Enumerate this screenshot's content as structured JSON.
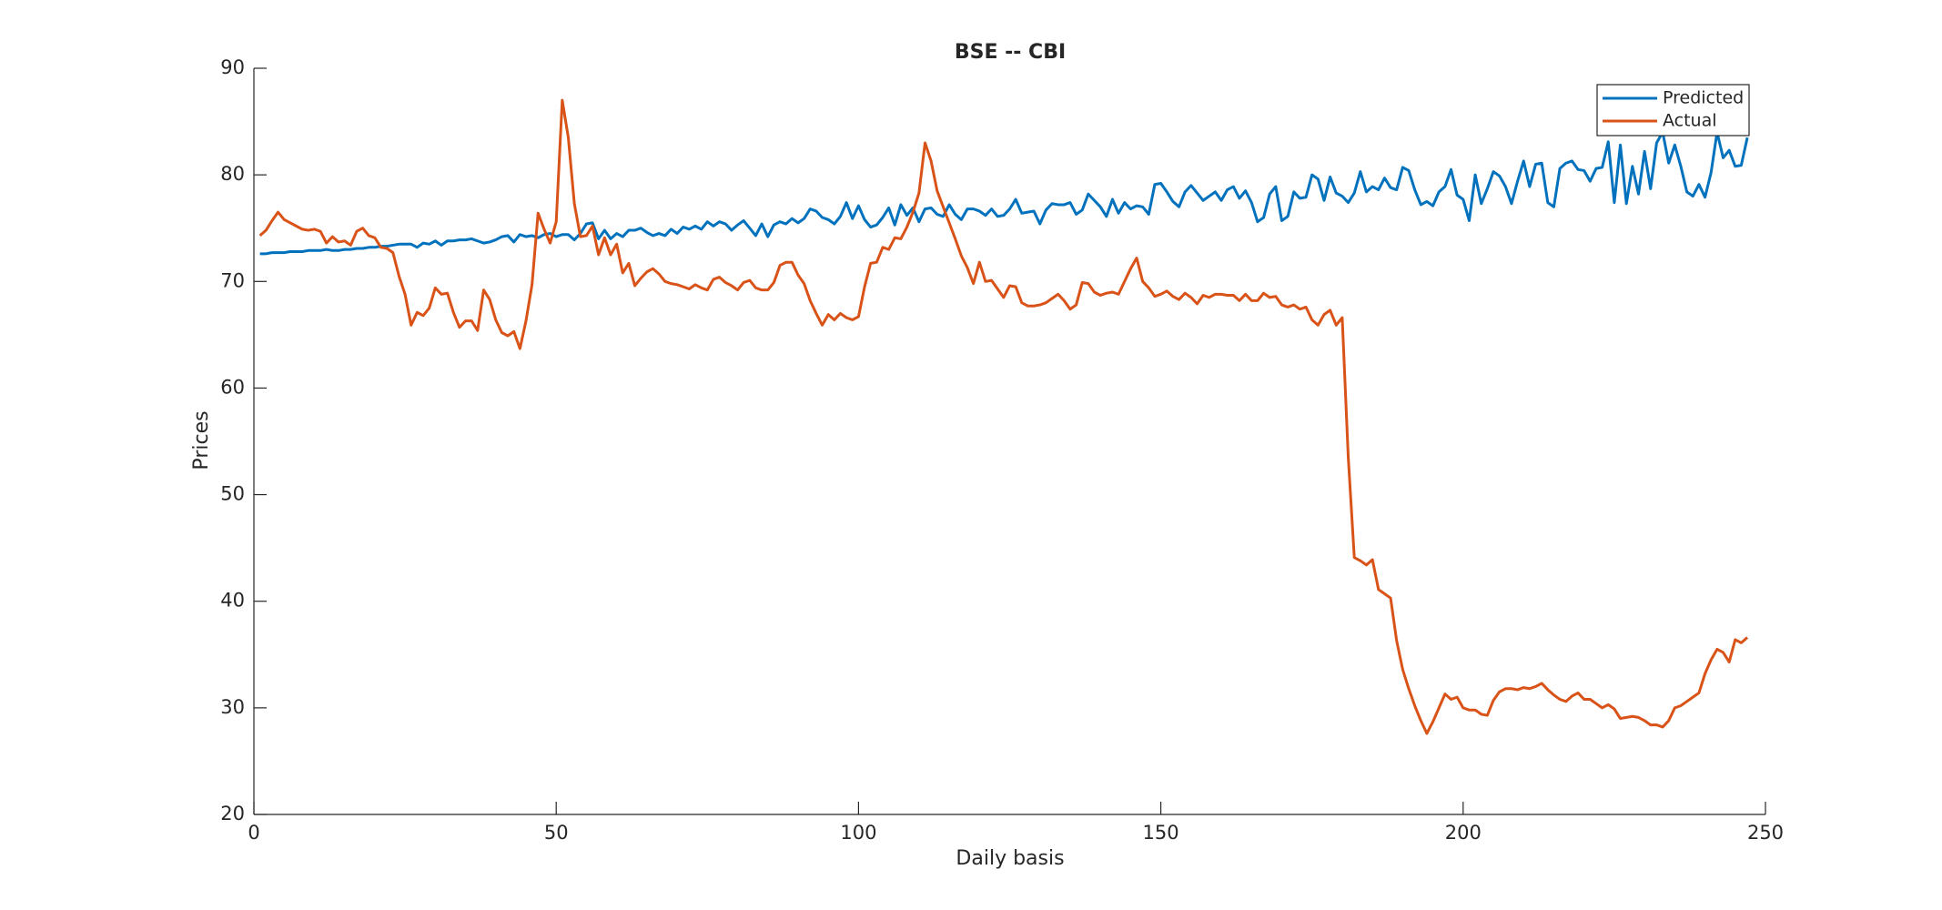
{
  "chart_data": {
    "type": "line",
    "title": "BSE -- CBI",
    "x_label": "Daily basis",
    "y_label": "Prices",
    "x": [
      1,
      2,
      3,
      4,
      5,
      6,
      7,
      8,
      9,
      10,
      11,
      12,
      13,
      14,
      15,
      16,
      17,
      18,
      19,
      20,
      21,
      22,
      23,
      24,
      25,
      26,
      27,
      28,
      29,
      30,
      31,
      32,
      33,
      34,
      35,
      36,
      37,
      38,
      39,
      40,
      41,
      42,
      43,
      44,
      45,
      46,
      47,
      48,
      49,
      50,
      51,
      52,
      53,
      54,
      55,
      56,
      57,
      58,
      59,
      60,
      61,
      62,
      63,
      64,
      65,
      66,
      67,
      68,
      69,
      70,
      71,
      72,
      73,
      74,
      75,
      76,
      77,
      78,
      79,
      80,
      81,
      82,
      83,
      84,
      85,
      86,
      87,
      88,
      89,
      90,
      91,
      92,
      93,
      94,
      95,
      96,
      97,
      98,
      99,
      100,
      101,
      102,
      103,
      104,
      105,
      106,
      107,
      108,
      109,
      110,
      111,
      112,
      113,
      114,
      115,
      116,
      117,
      118,
      119,
      120,
      121,
      122,
      123,
      124,
      125,
      126,
      127,
      128,
      129,
      130,
      131,
      132,
      133,
      134,
      135,
      136,
      137,
      138,
      139,
      140,
      141,
      142,
      143,
      144,
      145,
      146,
      147,
      148,
      149,
      150,
      151,
      152,
      153,
      154,
      155,
      156,
      157,
      158,
      159,
      160,
      161,
      162,
      163,
      164,
      165,
      166,
      167,
      168,
      169,
      170,
      171,
      172,
      173,
      174,
      175,
      176,
      177,
      178,
      179,
      180,
      181,
      182,
      183,
      184,
      185,
      186,
      187,
      188,
      189,
      190,
      191,
      192,
      193,
      194,
      195,
      196,
      197,
      198,
      199,
      200,
      201,
      202,
      203,
      204,
      205,
      206,
      207,
      208,
      209,
      210,
      211,
      212,
      213,
      214,
      215,
      216,
      217,
      218,
      219,
      220,
      221,
      222,
      223,
      224,
      225,
      226,
      227,
      228,
      229,
      230,
      231,
      232,
      233,
      234,
      235,
      236,
      237,
      238,
      239,
      240,
      241,
      242,
      243,
      244,
      245,
      246,
      247
    ],
    "series": [
      {
        "name": "Predicted",
        "color": "#0072bd",
        "values": [
          72.6,
          72.6,
          72.7,
          72.7,
          72.7,
          72.8,
          72.8,
          72.8,
          72.9,
          72.9,
          72.9,
          73.0,
          72.9,
          72.9,
          73.0,
          73.0,
          73.1,
          73.1,
          73.2,
          73.2,
          73.3,
          73.3,
          73.4,
          73.5,
          73.5,
          73.5,
          73.2,
          73.6,
          73.5,
          73.8,
          73.4,
          73.8,
          73.8,
          73.9,
          73.9,
          74.0,
          73.8,
          73.6,
          73.7,
          73.9,
          74.2,
          74.3,
          73.7,
          74.4,
          74.2,
          74.3,
          74.1,
          74.4,
          74.5,
          74.2,
          74.4,
          74.4,
          73.9,
          74.5,
          75.4,
          75.5,
          74.0,
          74.8,
          74.0,
          74.5,
          74.2,
          74.8,
          74.8,
          75.0,
          74.6,
          74.3,
          74.5,
          74.3,
          74.9,
          74.5,
          75.1,
          74.9,
          75.2,
          74.9,
          75.6,
          75.2,
          75.6,
          75.4,
          74.8,
          75.3,
          75.7,
          75.0,
          74.3,
          75.4,
          74.2,
          75.3,
          75.6,
          75.4,
          75.9,
          75.5,
          75.9,
          76.8,
          76.6,
          76.0,
          75.8,
          75.4,
          76.1,
          77.4,
          75.9,
          77.1,
          75.8,
          75.1,
          75.3,
          76.0,
          76.9,
          75.3,
          77.2,
          76.2,
          76.9,
          75.6,
          76.8,
          76.9,
          76.3,
          76.1,
          77.2,
          76.3,
          75.8,
          76.8,
          76.8,
          76.6,
          76.2,
          76.8,
          76.1,
          76.2,
          76.8,
          77.7,
          76.4,
          76.5,
          76.6,
          75.4,
          76.7,
          77.3,
          77.2,
          77.2,
          77.4,
          76.3,
          76.7,
          78.2,
          77.6,
          77.0,
          76.1,
          77.7,
          76.4,
          77.4,
          76.8,
          77.1,
          77.0,
          76.3,
          79.1,
          79.2,
          78.4,
          77.5,
          77.0,
          78.4,
          79.0,
          78.3,
          77.6,
          78.0,
          78.4,
          77.6,
          78.6,
          78.9,
          77.8,
          78.5,
          77.4,
          75.6,
          76.0,
          78.2,
          78.9,
          75.7,
          76.1,
          78.4,
          77.8,
          77.9,
          80.0,
          79.6,
          77.6,
          79.8,
          78.3,
          78.0,
          77.4,
          78.3,
          80.3,
          78.4,
          78.9,
          78.6,
          79.7,
          78.8,
          78.6,
          80.7,
          80.4,
          78.6,
          77.2,
          77.5,
          77.1,
          78.4,
          78.9,
          80.5,
          78.1,
          77.7,
          75.7,
          80.0,
          77.3,
          78.7,
          80.3,
          79.9,
          78.9,
          77.3,
          79.4,
          81.3,
          78.9,
          81.0,
          81.1,
          77.4,
          77.0,
          80.6,
          81.1,
          81.3,
          80.5,
          80.4,
          79.4,
          80.6,
          80.7,
          83.1,
          77.4,
          82.8,
          77.3,
          80.8,
          78.2,
          82.2,
          78.7,
          83.0,
          84.0,
          81.1,
          82.8,
          80.8,
          78.4,
          78.0,
          79.1,
          77.9,
          80.2,
          84.0,
          81.6,
          82.3,
          80.8,
          80.9,
          83.5
        ]
      },
      {
        "name": "Actual",
        "color": "#d95319",
        "values": [
          74.3,
          74.8,
          75.7,
          76.5,
          75.8,
          75.5,
          75.2,
          74.9,
          74.8,
          74.9,
          74.7,
          73.6,
          74.2,
          73.7,
          73.8,
          73.4,
          74.7,
          75.0,
          74.3,
          74.1,
          73.2,
          73.1,
          72.7,
          70.5,
          68.8,
          65.9,
          67.1,
          66.8,
          67.5,
          69.4,
          68.8,
          68.9,
          67.1,
          65.7,
          66.3,
          66.3,
          65.4,
          69.2,
          68.3,
          66.4,
          65.2,
          64.9,
          65.3,
          63.7,
          66.3,
          69.7,
          76.4,
          74.9,
          73.6,
          75.6,
          87.0,
          83.5,
          77.3,
          74.2,
          74.3,
          75.2,
          72.5,
          74.1,
          72.5,
          73.5,
          70.8,
          71.7,
          69.6,
          70.3,
          70.9,
          71.2,
          70.7,
          70.0,
          69.8,
          69.7,
          69.5,
          69.3,
          69.7,
          69.4,
          69.2,
          70.2,
          70.4,
          69.9,
          69.6,
          69.2,
          69.9,
          70.1,
          69.4,
          69.2,
          69.2,
          69.9,
          71.5,
          71.8,
          71.8,
          70.6,
          69.8,
          68.2,
          67.0,
          65.9,
          66.9,
          66.4,
          67.0,
          66.6,
          66.4,
          66.7,
          69.5,
          71.7,
          71.8,
          73.2,
          73.0,
          74.1,
          74.0,
          75.1,
          76.5,
          78.3,
          83.0,
          81.3,
          78.5,
          77.0,
          75.5,
          74.0,
          72.4,
          71.3,
          69.8,
          71.8,
          70.0,
          70.1,
          69.3,
          68.5,
          69.6,
          69.5,
          68.0,
          67.7,
          67.7,
          67.8,
          68.0,
          68.4,
          68.8,
          68.2,
          67.4,
          67.8,
          69.9,
          69.8,
          69.0,
          68.7,
          68.9,
          69.0,
          68.8,
          70.0,
          71.2,
          72.2,
          70.0,
          69.4,
          68.6,
          68.8,
          69.1,
          68.6,
          68.3,
          68.9,
          68.5,
          67.9,
          68.7,
          68.5,
          68.8,
          68.8,
          68.7,
          68.7,
          68.2,
          68.8,
          68.2,
          68.2,
          68.9,
          68.5,
          68.6,
          67.8,
          67.6,
          67.8,
          67.4,
          67.6,
          66.4,
          65.9,
          66.9,
          67.3,
          65.9,
          66.6,
          53.5,
          44.1,
          43.8,
          43.4,
          43.9,
          41.1,
          40.7,
          40.3,
          36.3,
          33.6,
          31.8,
          30.2,
          28.8,
          27.6,
          28.7,
          30.0,
          31.3,
          30.8,
          31.0,
          30.0,
          29.8,
          29.8,
          29.4,
          29.3,
          30.7,
          31.5,
          31.8,
          31.8,
          31.7,
          31.9,
          31.8,
          32.0,
          32.3,
          31.7,
          31.2,
          30.8,
          30.6,
          31.1,
          31.4,
          30.8,
          30.8,
          30.4,
          30.0,
          30.3,
          29.9,
          29.0,
          29.1,
          29.2,
          29.1,
          28.8,
          28.4,
          28.4,
          28.2,
          28.8,
          30.0,
          30.2,
          30.6,
          31.0,
          31.4,
          33.2,
          34.5,
          35.5,
          35.2,
          34.3,
          36.4,
          36.1,
          36.6
        ]
      }
    ],
    "xlim": [
      0,
      250
    ],
    "xticks": [
      0,
      50,
      100,
      150,
      200,
      250
    ],
    "ylim": [
      20,
      90
    ],
    "yticks": [
      20,
      30,
      40,
      50,
      60,
      70,
      80,
      90
    ],
    "grid": false,
    "legend": "upper right"
  }
}
